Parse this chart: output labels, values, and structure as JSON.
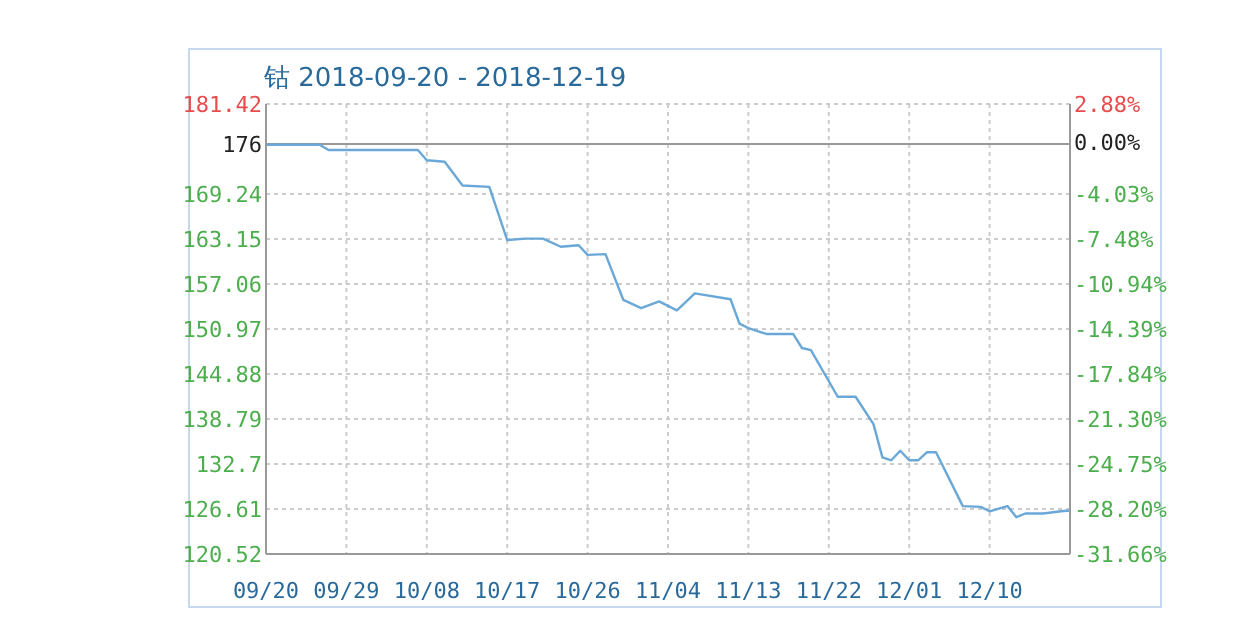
{
  "chart_data": {
    "type": "line",
    "title": "钴 2018-09-20 - 2018-12-19",
    "x": [
      "2018-09-20",
      "2018-09-26",
      "2018-09-27",
      "2018-10-07",
      "2018-10-08",
      "2018-10-10",
      "2018-10-12",
      "2018-10-15",
      "2018-10-17",
      "2018-10-19",
      "2018-10-21",
      "2018-10-23",
      "2018-10-25",
      "2018-10-26",
      "2018-10-28",
      "2018-10-30",
      "2018-11-01",
      "2018-11-03",
      "2018-11-05",
      "2018-11-07",
      "2018-11-11",
      "2018-11-12",
      "2018-11-13",
      "2018-11-15",
      "2018-11-18",
      "2018-11-19",
      "2018-11-20",
      "2018-11-23",
      "2018-11-25",
      "2018-11-27",
      "2018-11-28",
      "2018-11-29",
      "2018-11-30",
      "2018-12-01",
      "2018-12-02",
      "2018-12-03",
      "2018-12-04",
      "2018-12-07",
      "2018-12-09",
      "2018-12-10",
      "2018-12-12",
      "2018-12-13",
      "2018-12-14",
      "2018-12-16",
      "2018-12-18",
      "2018-12-19"
    ],
    "series": [
      {
        "color": "#6aa8d8",
        "values": [
          175.9,
          175.9,
          175.2,
          175.2,
          173.8,
          173.6,
          170.4,
          170.2,
          163.0,
          163.2,
          163.2,
          162.1,
          162.3,
          161.0,
          161.1,
          154.9,
          153.8,
          154.7,
          153.5,
          155.8,
          155.0,
          151.7,
          151.1,
          150.3,
          150.3,
          148.4,
          148.1,
          141.8,
          141.8,
          138.1,
          133.6,
          133.2,
          134.5,
          133.2,
          133.2,
          134.3,
          134.3,
          127.0,
          126.9,
          126.3,
          127.0,
          125.5,
          126.0,
          126.0,
          126.3,
          126.4
        ]
      }
    ],
    "xlim": [
      "2018-09-20",
      "2018-12-19"
    ],
    "xticks": [
      {
        "value": "2018-09-20",
        "label": "09/20"
      },
      {
        "value": "2018-09-29",
        "label": "09/29"
      },
      {
        "value": "2018-10-08",
        "label": "10/08"
      },
      {
        "value": "2018-10-17",
        "label": "10/17"
      },
      {
        "value": "2018-10-26",
        "label": "10/26"
      },
      {
        "value": "2018-11-04",
        "label": "11/04"
      },
      {
        "value": "2018-11-13",
        "label": "11/13"
      },
      {
        "value": "2018-11-22",
        "label": "11/22"
      },
      {
        "value": "2018-12-01",
        "label": "12/01"
      },
      {
        "value": "2018-12-10",
        "label": "12/10"
      }
    ],
    "ylim": [
      120.52,
      181.42
    ],
    "yticks": [
      120.52,
      126.61,
      132.7,
      138.79,
      144.88,
      150.97,
      157.06,
      163.15,
      169.24,
      176,
      181.42
    ],
    "y2lim": [
      -31.66,
      2.88
    ],
    "y2ticks": [
      {
        "value": -31.66,
        "label": "-31.66%"
      },
      {
        "value": -28.2,
        "label": "-28.20%"
      },
      {
        "value": -24.75,
        "label": "-24.75%"
      },
      {
        "value": -21.3,
        "label": "-21.30%"
      },
      {
        "value": -17.84,
        "label": "-17.84%"
      },
      {
        "value": -14.39,
        "label": "-14.39%"
      },
      {
        "value": -10.94,
        "label": "-10.94%"
      },
      {
        "value": -7.48,
        "label": "-7.48%"
      },
      {
        "value": -4.03,
        "label": "-4.03%"
      },
      {
        "value": 0,
        "label": "0.00%"
      },
      {
        "value": 2.88,
        "label": "2.88%"
      }
    ],
    "ref_lines": [
      {
        "axis": "y",
        "value": 176,
        "color": "#999999",
        "line_style": "solid"
      }
    ],
    "grid": true,
    "marker": "none",
    "line_style": "solid"
  }
}
